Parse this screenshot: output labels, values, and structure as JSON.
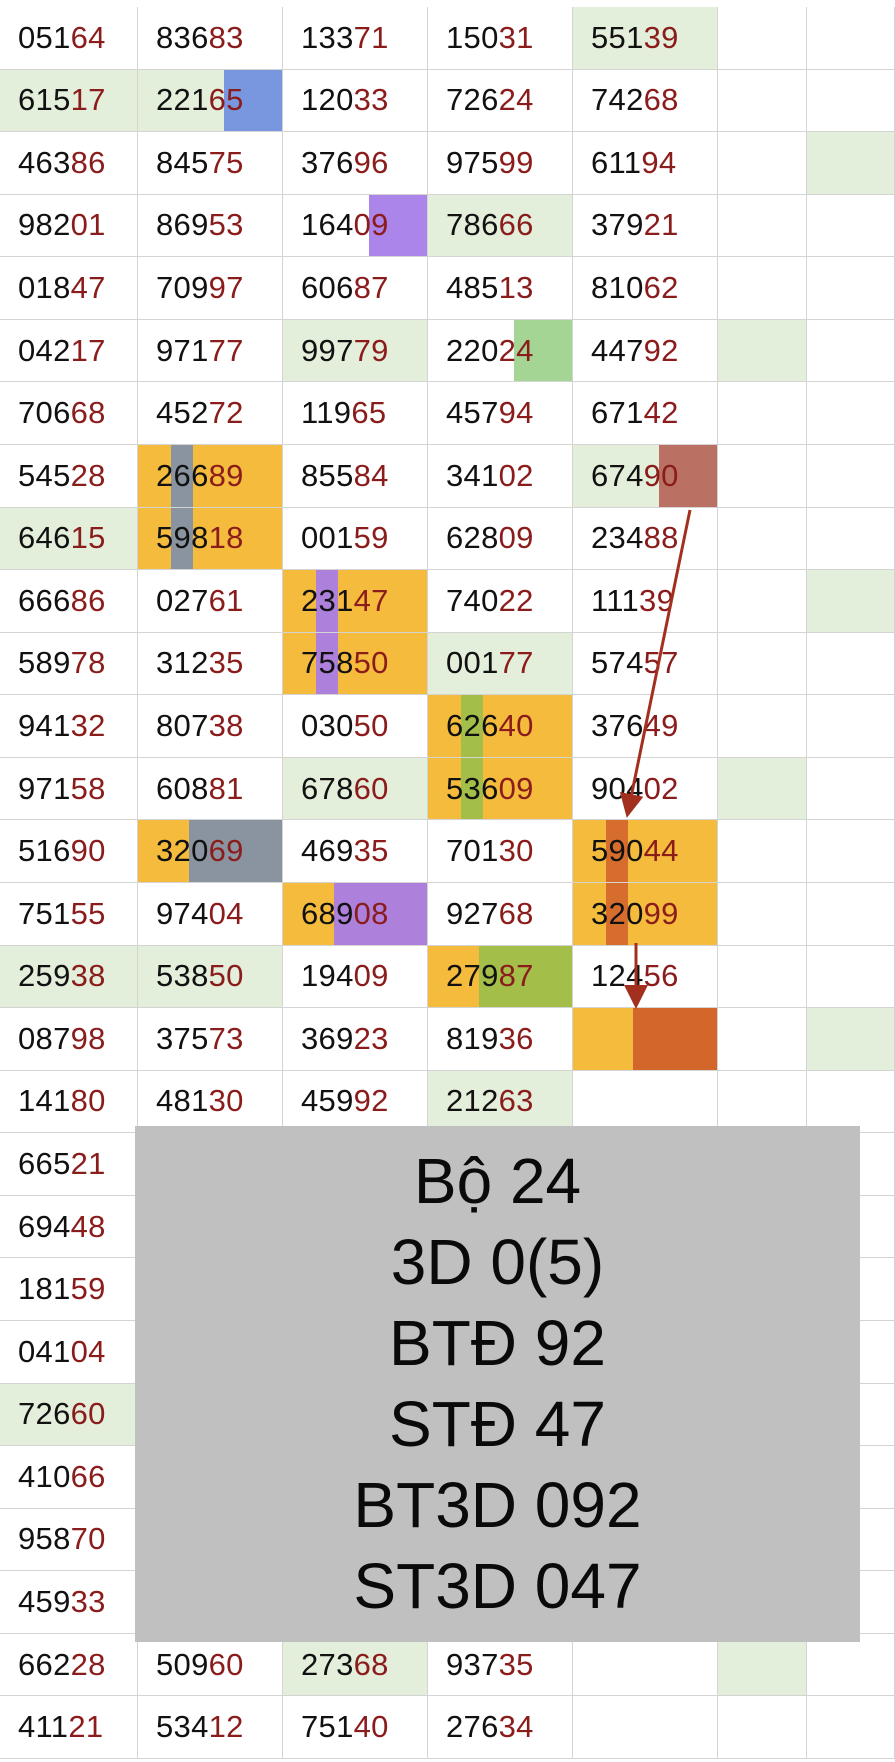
{
  "table": {
    "rows": [
      [
        "05164",
        "83683",
        "13371",
        "15031",
        "55139",
        "",
        ""
      ],
      [
        "61517",
        "22165",
        "12033",
        "72624",
        "74268",
        "",
        ""
      ],
      [
        "46386",
        "84575",
        "37696",
        "97599",
        "61194",
        "",
        ""
      ],
      [
        "98201",
        "86953",
        "16409",
        "78666",
        "37921",
        "",
        ""
      ],
      [
        "01847",
        "70997",
        "60687",
        "48513",
        "81062",
        "",
        ""
      ],
      [
        "04217",
        "97177",
        "99779",
        "22024",
        "44792",
        "",
        ""
      ],
      [
        "70668",
        "45272",
        "11965",
        "45794",
        "67142",
        "",
        ""
      ],
      [
        "54528",
        "26689",
        "85584",
        "34102",
        "67490",
        "",
        ""
      ],
      [
        "64615",
        "59818",
        "00159",
        "62809",
        "23488",
        "",
        ""
      ],
      [
        "66686",
        "02761",
        "23147",
        "74022",
        "11139",
        "",
        ""
      ],
      [
        "58978",
        "31235",
        "75850",
        "00177",
        "57457",
        "",
        ""
      ],
      [
        "94132",
        "80738",
        "03050",
        "62640",
        "37649",
        "",
        ""
      ],
      [
        "97158",
        "60881",
        "67860",
        "53609",
        "90402",
        "",
        ""
      ],
      [
        "51690",
        "32069",
        "46935",
        "70130",
        "59044",
        "",
        ""
      ],
      [
        "75155",
        "97404",
        "68908",
        "92768",
        "32099",
        "",
        ""
      ],
      [
        "25938",
        "53850",
        "19409",
        "27987",
        "12456",
        "",
        ""
      ],
      [
        "08798",
        "37573",
        "36923",
        "81936",
        "",
        "",
        ""
      ],
      [
        "14180",
        "48130",
        "45992",
        "21263",
        "",
        "",
        ""
      ],
      [
        "66521",
        "",
        "",
        "",
        "",
        "",
        ""
      ],
      [
        "69448",
        "",
        "",
        "",
        "",
        "",
        ""
      ],
      [
        "18159",
        "",
        "",
        "",
        "",
        "",
        ""
      ],
      [
        "04104",
        "",
        "",
        "",
        "",
        "",
        ""
      ],
      [
        "72660",
        "",
        "",
        "",
        "",
        "",
        ""
      ],
      [
        "41066",
        "",
        "",
        "",
        "",
        "",
        ""
      ],
      [
        "95870",
        "",
        "",
        "",
        "",
        "",
        ""
      ],
      [
        "45933",
        "",
        "",
        "",
        "",
        "",
        ""
      ],
      [
        "66228",
        "50960",
        "27368",
        "93735",
        "",
        "",
        ""
      ],
      [
        "41121",
        "53412",
        "75140",
        "27634",
        "",
        "",
        ""
      ]
    ]
  },
  "overlay": {
    "lines": [
      "Bộ 24",
      "3D 0(5)",
      "BTĐ 92",
      "STĐ 47",
      "BT3D 092",
      "ST3D 047"
    ]
  },
  "colors": {
    "text": "#111111",
    "tail_digits": "#8b1c1c",
    "grid_line": "#d4d4d4",
    "light_green": "#e3efdb",
    "orange": "#f4bb3d",
    "blue": "#6f8fe0",
    "purple": "#a57be8",
    "green": "#9cd18c",
    "brown": "#b7655a",
    "dark_orange": "#d2662b",
    "slate": "#8090a8",
    "olive": "#9bbf4a",
    "overlay_bg": "#c0c0c0",
    "arrow": "#a3301f"
  }
}
